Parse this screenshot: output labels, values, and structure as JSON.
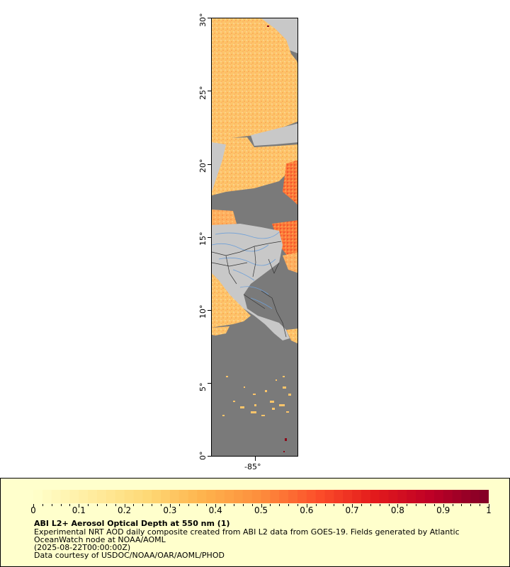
{
  "map": {
    "lat_labels": [
      "30°",
      "25°",
      "20°",
      "15°",
      "10°",
      "5°",
      "0°"
    ],
    "lon_labels": [
      "-85°"
    ],
    "colors": {
      "no_data_ocean": "#7a7a7a",
      "land": "#c8c8c8",
      "rivers": "#6fa0d8",
      "borders": "#333333"
    }
  },
  "legend": {
    "tick_labels": [
      "0",
      "0.1",
      "0.2",
      "0.3",
      "0.4",
      "0.5",
      "0.6",
      "0.7",
      "0.8",
      "0.9",
      "1"
    ],
    "range": [
      0,
      1
    ],
    "colormap": "YlOrRd",
    "title": "ABI L2+ Aerosol Optical Depth at 550 nm (1)",
    "line1": "Experimental NRT AOD daily composite created from ABI L2 data from GOES-19. Fields generated by Atlantic",
    "line2": "OceanWatch node at NOAA/AOML",
    "line3": "(2025-08-22T00:00:00Z)",
    "line4": "Data courtesy of USDOC/NOAA/OAR/AOML/PHOD"
  }
}
